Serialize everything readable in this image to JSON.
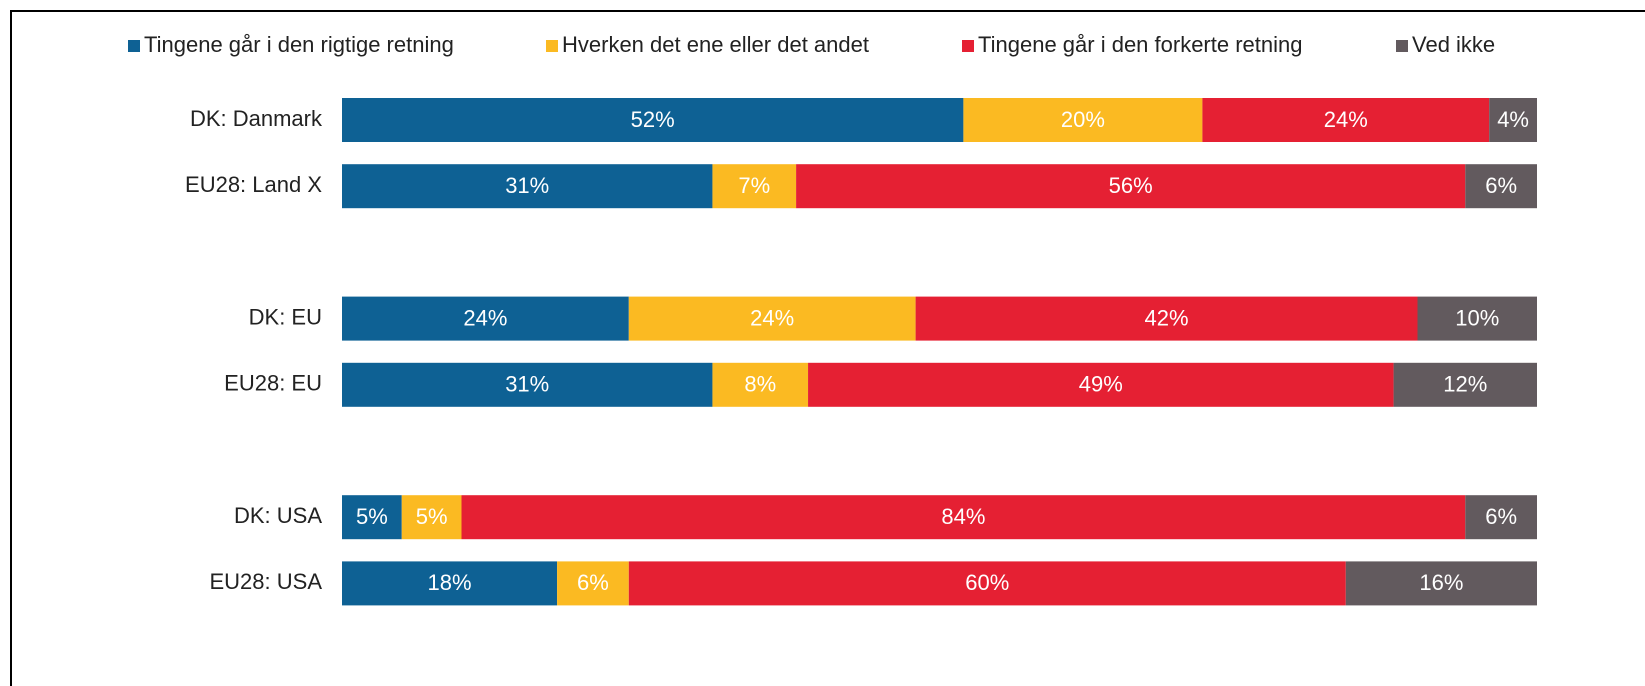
{
  "chart_data": {
    "type": "stacked-bar-horizontal",
    "categories": [
      "DK: Danmark",
      "EU28: Land X",
      null,
      "DK: EU",
      "EU28: EU",
      null,
      "DK: USA",
      "EU28: USA"
    ],
    "series": [
      {
        "name": "Tingene går i den rigtige retning",
        "color": "#0e6194",
        "values": [
          52,
          31,
          null,
          24,
          31,
          null,
          5,
          18
        ],
        "value_labels": [
          "52%",
          "31%",
          null,
          "24%",
          "31%",
          null,
          "5%",
          "18%"
        ]
      },
      {
        "name": "Hverken det ene eller det andet",
        "color": "#fbba22",
        "values": [
          20,
          7,
          null,
          24,
          8,
          null,
          5,
          6
        ],
        "value_labels": [
          "20%",
          "7%",
          null,
          "24%",
          "8%",
          null,
          "5%",
          "6%"
        ]
      },
      {
        "name": "Tingene går i den forkerte retning",
        "color": "#e52033",
        "values": [
          24,
          56,
          null,
          42,
          49,
          null,
          84,
          60
        ],
        "value_labels": [
          "24%",
          "56%",
          null,
          "42%",
          "49%",
          null,
          "84%",
          "60%"
        ]
      },
      {
        "name": "Ved ikke",
        "color": "#625a5e",
        "values": [
          4,
          6,
          null,
          10,
          12,
          null,
          6,
          16
        ],
        "value_labels": [
          "4%",
          "6%",
          null,
          "10%",
          "12%",
          null,
          "6%",
          "16%"
        ]
      }
    ],
    "xlim": [
      0,
      100
    ],
    "legend": "top"
  }
}
